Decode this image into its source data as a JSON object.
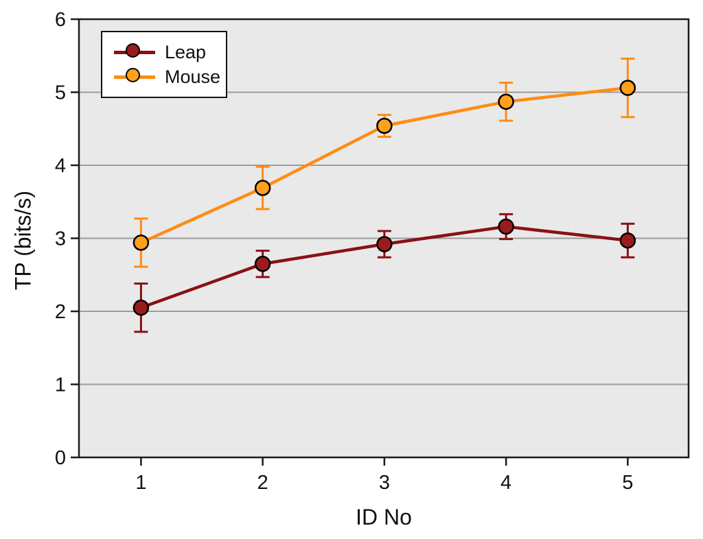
{
  "chart_data": {
    "type": "line",
    "title": "",
    "xlabel": "ID No",
    "ylabel": "TP (bits/s)",
    "x": [
      1,
      2,
      3,
      4,
      5
    ],
    "x_tick_labels": [
      "1",
      "2",
      "3",
      "4",
      "5"
    ],
    "y_ticks": [
      0,
      1,
      2,
      3,
      4,
      5,
      6
    ],
    "y_tick_labels": [
      "0",
      "1",
      "2",
      "3",
      "4",
      "5",
      "6"
    ],
    "xlim": [
      0.49,
      5.5
    ],
    "ylim": [
      0,
      6
    ],
    "grid": "horizontal gridlines at integer y values",
    "legend_position": "top-left",
    "plot_background": "#e9e9e9",
    "grid_color": "#9c9c9c",
    "frame_color": "#1a1a1a",
    "error_bars": true,
    "series": [
      {
        "name": "Leap",
        "line_color": "#8a1014",
        "marker_color": "#9a1b1b",
        "marker": "circle",
        "values": [
          2.05,
          2.65,
          2.92,
          3.16,
          2.97
        ],
        "errors": [
          0.33,
          0.18,
          0.18,
          0.17,
          0.23
        ]
      },
      {
        "name": "Mouse",
        "line_color": "#ff8c12",
        "marker_color": "#ffa01e",
        "marker": "circle",
        "values": [
          2.94,
          3.69,
          4.54,
          4.87,
          5.06
        ],
        "errors": [
          0.33,
          0.29,
          0.15,
          0.26,
          0.4
        ]
      }
    ]
  }
}
